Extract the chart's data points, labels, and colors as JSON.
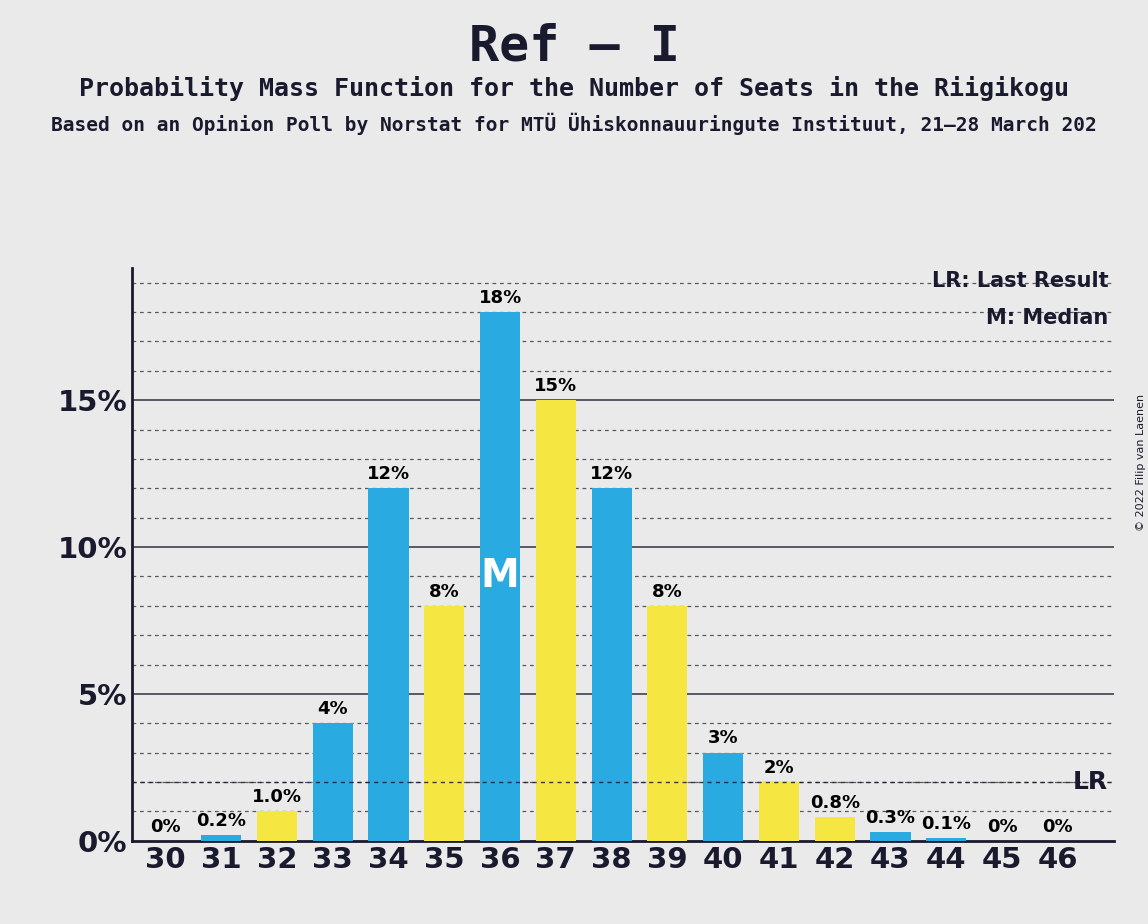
{
  "title": "Ref – I",
  "subtitle1": "Probability Mass Function for the Number of Seats in the Riigikogu",
  "subtitle2": "Based on an Opinion Poll by Norstat for MTÜ Ühiskonnauuringute Instituut, 21–28 March 202",
  "copyright": "© 2022 Filip van Laenen",
  "seats": [
    30,
    31,
    32,
    33,
    34,
    35,
    36,
    37,
    38,
    39,
    40,
    41,
    42,
    43,
    44,
    45,
    46
  ],
  "values": [
    0.0,
    0.2,
    1.0,
    4.0,
    12.0,
    8.0,
    18.0,
    15.0,
    12.0,
    8.0,
    3.0,
    2.0,
    0.8,
    0.3,
    0.1,
    0.0,
    0.0
  ],
  "colors": [
    "#29ABE2",
    "#29ABE2",
    "#F5E642",
    "#29ABE2",
    "#29ABE2",
    "#F5E642",
    "#29ABE2",
    "#F5E642",
    "#29ABE2",
    "#F5E642",
    "#29ABE2",
    "#F5E642",
    "#F5E642",
    "#29ABE2",
    "#29ABE2",
    "#F5E642",
    "#F5E642"
  ],
  "bar_labels": [
    "0%",
    "0.2%",
    "1.0%",
    "4%",
    "12%",
    "8%",
    "18%",
    "15%",
    "12%",
    "8%",
    "3%",
    "2%",
    "0.8%",
    "0.3%",
    "0.1%",
    "0%",
    "0%"
  ],
  "median_seat": 36,
  "median_label": "M",
  "lr_y": 2.0,
  "lr_label": "LR",
  "legend_lr": "LR: Last Result",
  "legend_m": "M: Median",
  "blue_color": "#29ABE2",
  "yellow_color": "#F5E642",
  "background_color": "#EAEAEA",
  "bar_label_fontsize": 13,
  "title_fontsize": 36,
  "subtitle1_fontsize": 18,
  "subtitle2_fontsize": 14,
  "tick_fontsize": 21,
  "legend_fontsize": 15,
  "ytick_labels": [
    "0%",
    "5%",
    "10%",
    "15%"
  ],
  "ytick_values": [
    0,
    5,
    10,
    15
  ],
  "ylim": [
    0,
    19.5
  ],
  "xlim_left": 29.4,
  "xlim_right": 47.0,
  "bar_width": 0.72
}
